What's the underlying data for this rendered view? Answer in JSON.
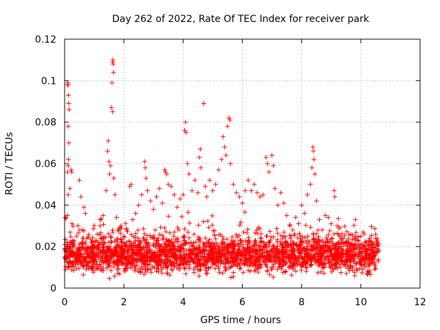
{
  "chart_data": {
    "type": "scatter",
    "title": "Day 262 of 2022, Rate Of TEC Index for receiver park",
    "xlabel": "GPS time / hours",
    "ylabel": "ROTI / TECUs",
    "xlim": [
      0,
      12
    ],
    "ylim": [
      0,
      0.12
    ],
    "x_ticks": [
      0,
      2,
      4,
      6,
      8,
      10,
      12
    ],
    "x_tick_labels": [
      "0",
      "2",
      "4",
      "6",
      "8",
      "10",
      "12"
    ],
    "y_ticks": [
      0,
      0.02,
      0.04,
      0.06,
      0.08,
      0.1,
      0.12
    ],
    "y_tick_labels": [
      "0",
      "0.02",
      "0.04",
      "0.06",
      "0.08",
      "0.1",
      "0.12"
    ],
    "grid": true,
    "marker": "+",
    "color": "#ff0000",
    "series": [
      {
        "name": "ROTI",
        "points": [
          [
            0.02,
            0.014
          ],
          [
            0.05,
            0.018
          ],
          [
            0.08,
            0.022
          ],
          [
            0.1,
            0.035
          ],
          [
            0.12,
            0.045
          ],
          [
            0.1,
            0.056
          ],
          [
            0.12,
            0.059
          ],
          [
            0.13,
            0.062
          ],
          [
            0.1,
            0.098
          ],
          [
            0.11,
            0.099
          ],
          [
            0.12,
            0.098
          ],
          [
            0.13,
            0.093
          ],
          [
            0.14,
            0.089
          ],
          [
            0.15,
            0.086
          ],
          [
            0.12,
            0.078
          ],
          [
            0.14,
            0.07
          ],
          [
            0.18,
            0.048
          ],
          [
            0.22,
            0.057
          ],
          [
            0.24,
            0.056
          ],
          [
            0.25,
            0.031
          ],
          [
            0.3,
            0.021
          ],
          [
            0.35,
            0.017
          ],
          [
            0.4,
            0.025
          ],
          [
            0.45,
            0.03
          ],
          [
            0.5,
            0.052
          ],
          [
            0.55,
            0.044
          ],
          [
            0.6,
            0.028
          ],
          [
            0.65,
            0.039
          ],
          [
            0.7,
            0.036
          ],
          [
            0.75,
            0.024
          ],
          [
            0.8,
            0.019
          ],
          [
            0.9,
            0.022
          ],
          [
            1.0,
            0.02
          ],
          [
            1.1,
            0.026
          ],
          [
            1.2,
            0.03
          ],
          [
            1.3,
            0.035
          ],
          [
            1.4,
            0.047
          ],
          [
            1.45,
            0.066
          ],
          [
            1.47,
            0.071
          ],
          [
            1.5,
            0.061
          ],
          [
            1.52,
            0.055
          ],
          [
            1.55,
            0.059
          ],
          [
            1.58,
            0.087
          ],
          [
            1.6,
            0.099
          ],
          [
            1.62,
            0.109
          ],
          [
            1.63,
            0.11
          ],
          [
            1.64,
            0.108
          ],
          [
            1.65,
            0.104
          ],
          [
            1.62,
            0.085
          ],
          [
            1.66,
            0.053
          ],
          [
            1.7,
            0.045
          ],
          [
            1.75,
            0.034
          ],
          [
            1.8,
            0.028
          ],
          [
            1.9,
            0.03
          ],
          [
            2.0,
            0.025
          ],
          [
            2.1,
            0.028
          ],
          [
            2.2,
            0.049
          ],
          [
            2.25,
            0.05
          ],
          [
            2.3,
            0.033
          ],
          [
            2.4,
            0.036
          ],
          [
            2.5,
            0.04
          ],
          [
            2.6,
            0.045
          ],
          [
            2.7,
            0.061
          ],
          [
            2.72,
            0.058
          ],
          [
            2.75,
            0.053
          ],
          [
            2.8,
            0.047
          ],
          [
            2.9,
            0.042
          ],
          [
            3.0,
            0.038
          ],
          [
            3.1,
            0.044
          ],
          [
            3.2,
            0.048
          ],
          [
            3.3,
            0.041
          ],
          [
            3.38,
            0.057
          ],
          [
            3.4,
            0.056
          ],
          [
            3.45,
            0.055
          ],
          [
            3.5,
            0.05
          ],
          [
            3.6,
            0.049
          ],
          [
            3.7,
            0.045
          ],
          [
            3.8,
            0.039
          ],
          [
            3.9,
            0.043
          ],
          [
            4.0,
            0.045
          ],
          [
            4.05,
            0.076
          ],
          [
            4.08,
            0.08
          ],
          [
            4.1,
            0.075
          ],
          [
            4.15,
            0.06
          ],
          [
            4.2,
            0.055
          ],
          [
            4.3,
            0.047
          ],
          [
            4.4,
            0.052
          ],
          [
            4.5,
            0.046
          ],
          [
            4.55,
            0.063
          ],
          [
            4.58,
            0.067
          ],
          [
            4.6,
            0.058
          ],
          [
            4.7,
            0.089
          ],
          [
            4.75,
            0.049
          ],
          [
            4.8,
            0.044
          ],
          [
            4.9,
            0.052
          ],
          [
            5.0,
            0.047
          ],
          [
            5.1,
            0.05
          ],
          [
            5.2,
            0.057
          ],
          [
            5.3,
            0.062
          ],
          [
            5.35,
            0.073
          ],
          [
            5.4,
            0.068
          ],
          [
            5.45,
            0.064
          ],
          [
            5.5,
            0.078
          ],
          [
            5.55,
            0.082
          ],
          [
            5.58,
            0.081
          ],
          [
            5.6,
            0.06
          ],
          [
            5.7,
            0.05
          ],
          [
            5.8,
            0.046
          ],
          [
            5.9,
            0.044
          ],
          [
            6.0,
            0.041
          ],
          [
            6.1,
            0.047
          ],
          [
            6.2,
            0.052
          ],
          [
            6.3,
            0.047
          ],
          [
            6.4,
            0.05
          ],
          [
            6.5,
            0.046
          ],
          [
            6.6,
            0.044
          ],
          [
            6.7,
            0.045
          ],
          [
            6.8,
            0.063
          ],
          [
            6.85,
            0.06
          ],
          [
            6.9,
            0.056
          ],
          [
            7.0,
            0.064
          ],
          [
            7.05,
            0.059
          ],
          [
            7.1,
            0.048
          ],
          [
            7.2,
            0.04
          ],
          [
            7.3,
            0.046
          ],
          [
            7.4,
            0.041
          ],
          [
            7.5,
            0.035
          ],
          [
            7.6,
            0.03
          ],
          [
            7.7,
            0.028
          ],
          [
            7.8,
            0.034
          ],
          [
            7.9,
            0.031
          ],
          [
            8.0,
            0.04
          ],
          [
            8.1,
            0.036
          ],
          [
            8.2,
            0.045
          ],
          [
            8.3,
            0.05
          ],
          [
            8.35,
            0.058
          ],
          [
            8.38,
            0.068
          ],
          [
            8.4,
            0.066
          ],
          [
            8.42,
            0.062
          ],
          [
            8.45,
            0.055
          ],
          [
            8.5,
            0.042
          ],
          [
            8.6,
            0.033
          ],
          [
            8.7,
            0.028
          ],
          [
            8.8,
            0.035
          ],
          [
            8.9,
            0.034
          ],
          [
            9.0,
            0.031
          ],
          [
            9.1,
            0.047
          ],
          [
            9.12,
            0.044
          ],
          [
            9.2,
            0.03
          ],
          [
            9.3,
            0.029
          ],
          [
            9.4,
            0.024
          ],
          [
            9.5,
            0.022
          ],
          [
            9.6,
            0.026
          ],
          [
            9.7,
            0.021
          ],
          [
            9.8,
            0.019
          ],
          [
            9.9,
            0.023
          ],
          [
            10.0,
            0.025
          ],
          [
            10.1,
            0.02
          ],
          [
            10.2,
            0.022
          ],
          [
            10.3,
            0.024
          ],
          [
            10.4,
            0.021
          ],
          [
            10.5,
            0.026
          ],
          [
            10.55,
            0.024
          ],
          [
            10.6,
            0.018
          ]
        ]
      }
    ],
    "band": {
      "x_range": [
        0.0,
        10.6
      ],
      "y_typical": [
        0.004,
        0.028
      ],
      "description_of_marks": "dense background cloud of ROTI samples"
    }
  }
}
